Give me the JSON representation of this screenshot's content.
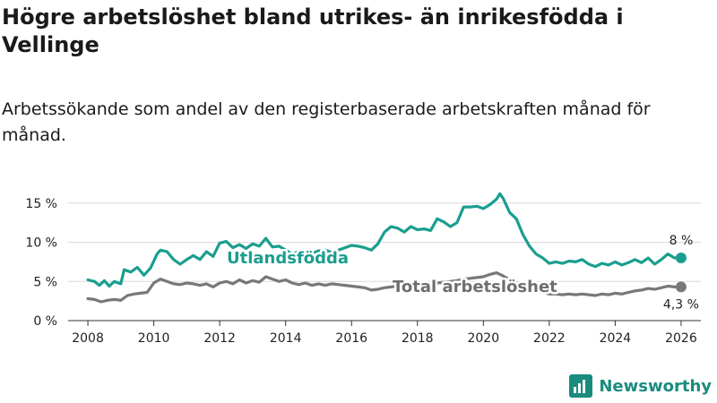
{
  "title": "Högre arbetslöshet bland utrikes- än inrikesfödda i Vellinge",
  "subtitle": "Arbetssökande som andel av den registerbaserade arbetskraften månad för månad.",
  "brand": {
    "name": "Newsworthy",
    "color": "#1a8c7e"
  },
  "chart_data": {
    "type": "line",
    "title": "Högre arbetslöshet bland utrikes- än inrikesfödda i Vellinge",
    "subtitle": "Arbetssökande som andel av den registerbaserade arbetskraften månad för månad.",
    "xlabel": "",
    "ylabel": "",
    "xlim": [
      2007.4,
      2026.6
    ],
    "ylim": [
      0,
      16
    ],
    "y_ticks": [
      0,
      5,
      10,
      15
    ],
    "y_tick_labels": [
      "0 %",
      "5 %",
      "10 %",
      "15 %"
    ],
    "x_ticks": [
      2008,
      2010,
      2012,
      2014,
      2016,
      2018,
      2020,
      2022,
      2024,
      2026
    ],
    "x_tick_labels": [
      "2008",
      "2010",
      "2012",
      "2014",
      "2016",
      "2018",
      "2020",
      "2022",
      "2024",
      "2026"
    ],
    "grid": "horizontal",
    "series": [
      {
        "name": "Utlandsfödda",
        "color": "#1a9e8f",
        "end_label": "8 %",
        "end_value": 8.0,
        "points": [
          [
            2008.0,
            5.2
          ],
          [
            2008.2,
            5.0
          ],
          [
            2008.35,
            4.5
          ],
          [
            2008.5,
            5.1
          ],
          [
            2008.65,
            4.4
          ],
          [
            2008.8,
            5.0
          ],
          [
            2009.0,
            4.7
          ],
          [
            2009.1,
            6.5
          ],
          [
            2009.3,
            6.2
          ],
          [
            2009.5,
            6.8
          ],
          [
            2009.7,
            5.8
          ],
          [
            2009.9,
            6.7
          ],
          [
            2010.1,
            8.5
          ],
          [
            2010.2,
            9.0
          ],
          [
            2010.4,
            8.8
          ],
          [
            2010.6,
            7.8
          ],
          [
            2010.8,
            7.2
          ],
          [
            2011.0,
            7.8
          ],
          [
            2011.2,
            8.3
          ],
          [
            2011.4,
            7.8
          ],
          [
            2011.6,
            8.8
          ],
          [
            2011.8,
            8.2
          ],
          [
            2012.0,
            9.9
          ],
          [
            2012.2,
            10.1
          ],
          [
            2012.4,
            9.3
          ],
          [
            2012.6,
            9.7
          ],
          [
            2012.8,
            9.2
          ],
          [
            2013.0,
            9.8
          ],
          [
            2013.2,
            9.5
          ],
          [
            2013.4,
            10.5
          ],
          [
            2013.6,
            9.4
          ],
          [
            2013.8,
            9.5
          ],
          [
            2014.0,
            9.0
          ],
          [
            2014.2,
            8.5
          ],
          [
            2014.4,
            8.8
          ],
          [
            2014.6,
            8.3
          ],
          [
            2014.8,
            8.6
          ],
          [
            2015.0,
            8.9
          ],
          [
            2015.2,
            9.0
          ],
          [
            2015.4,
            8.7
          ],
          [
            2015.6,
            9.0
          ],
          [
            2015.8,
            9.3
          ],
          [
            2016.0,
            9.6
          ],
          [
            2016.2,
            9.5
          ],
          [
            2016.4,
            9.3
          ],
          [
            2016.6,
            9.0
          ],
          [
            2016.8,
            9.8
          ],
          [
            2017.0,
            11.3
          ],
          [
            2017.2,
            12.0
          ],
          [
            2017.4,
            11.8
          ],
          [
            2017.6,
            11.3
          ],
          [
            2017.8,
            12.0
          ],
          [
            2018.0,
            11.6
          ],
          [
            2018.2,
            11.7
          ],
          [
            2018.4,
            11.5
          ],
          [
            2018.6,
            13.0
          ],
          [
            2018.8,
            12.6
          ],
          [
            2019.0,
            12.0
          ],
          [
            2019.2,
            12.5
          ],
          [
            2019.4,
            14.5
          ],
          [
            2019.6,
            14.5
          ],
          [
            2019.8,
            14.6
          ],
          [
            2020.0,
            14.3
          ],
          [
            2020.2,
            14.8
          ],
          [
            2020.4,
            15.5
          ],
          [
            2020.5,
            16.2
          ],
          [
            2020.6,
            15.6
          ],
          [
            2020.8,
            13.8
          ],
          [
            2021.0,
            13.0
          ],
          [
            2021.2,
            11.0
          ],
          [
            2021.4,
            9.5
          ],
          [
            2021.6,
            8.5
          ],
          [
            2021.8,
            8.0
          ],
          [
            2022.0,
            7.3
          ],
          [
            2022.2,
            7.5
          ],
          [
            2022.4,
            7.3
          ],
          [
            2022.6,
            7.6
          ],
          [
            2022.8,
            7.5
          ],
          [
            2023.0,
            7.8
          ],
          [
            2023.2,
            7.2
          ],
          [
            2023.4,
            6.9
          ],
          [
            2023.6,
            7.3
          ],
          [
            2023.8,
            7.1
          ],
          [
            2024.0,
            7.5
          ],
          [
            2024.2,
            7.1
          ],
          [
            2024.4,
            7.4
          ],
          [
            2024.6,
            7.8
          ],
          [
            2024.8,
            7.4
          ],
          [
            2025.0,
            8.0
          ],
          [
            2025.2,
            7.2
          ],
          [
            2025.4,
            7.8
          ],
          [
            2025.6,
            8.5
          ],
          [
            2025.8,
            8.0
          ],
          [
            2026.0,
            8.0
          ]
        ]
      },
      {
        "name": "Total arbetslöshet",
        "color": "#787878",
        "end_label": "4,3 %",
        "end_value": 4.3,
        "points": [
          [
            2008.0,
            2.8
          ],
          [
            2008.2,
            2.7
          ],
          [
            2008.4,
            2.4
          ],
          [
            2008.6,
            2.6
          ],
          [
            2008.8,
            2.7
          ],
          [
            2009.0,
            2.6
          ],
          [
            2009.2,
            3.2
          ],
          [
            2009.4,
            3.4
          ],
          [
            2009.6,
            3.5
          ],
          [
            2009.8,
            3.6
          ],
          [
            2010.0,
            4.8
          ],
          [
            2010.2,
            5.3
          ],
          [
            2010.4,
            5.0
          ],
          [
            2010.6,
            4.7
          ],
          [
            2010.8,
            4.6
          ],
          [
            2011.0,
            4.8
          ],
          [
            2011.2,
            4.7
          ],
          [
            2011.4,
            4.5
          ],
          [
            2011.6,
            4.7
          ],
          [
            2011.8,
            4.3
          ],
          [
            2012.0,
            4.8
          ],
          [
            2012.2,
            5.0
          ],
          [
            2012.4,
            4.7
          ],
          [
            2012.6,
            5.2
          ],
          [
            2012.8,
            4.8
          ],
          [
            2013.0,
            5.1
          ],
          [
            2013.2,
            4.9
          ],
          [
            2013.4,
            5.6
          ],
          [
            2013.6,
            5.3
          ],
          [
            2013.8,
            5.0
          ],
          [
            2014.0,
            5.2
          ],
          [
            2014.2,
            4.8
          ],
          [
            2014.4,
            4.6
          ],
          [
            2014.6,
            4.8
          ],
          [
            2014.8,
            4.5
          ],
          [
            2015.0,
            4.7
          ],
          [
            2015.2,
            4.5
          ],
          [
            2015.4,
            4.7
          ],
          [
            2015.6,
            4.6
          ],
          [
            2015.8,
            4.5
          ],
          [
            2016.0,
            4.4
          ],
          [
            2016.2,
            4.3
          ],
          [
            2016.4,
            4.2
          ],
          [
            2016.6,
            3.9
          ],
          [
            2016.8,
            4.0
          ],
          [
            2017.0,
            4.2
          ],
          [
            2017.2,
            4.3
          ],
          [
            2017.4,
            4.4
          ],
          [
            2017.6,
            4.5
          ],
          [
            2017.8,
            4.6
          ],
          [
            2018.0,
            4.5
          ],
          [
            2018.2,
            4.5
          ],
          [
            2018.4,
            4.7
          ],
          [
            2018.6,
            4.8
          ],
          [
            2018.8,
            4.9
          ],
          [
            2019.0,
            5.0
          ],
          [
            2019.2,
            5.1
          ],
          [
            2019.4,
            5.3
          ],
          [
            2019.6,
            5.4
          ],
          [
            2019.8,
            5.5
          ],
          [
            2020.0,
            5.6
          ],
          [
            2020.2,
            5.9
          ],
          [
            2020.4,
            6.1
          ],
          [
            2020.6,
            5.7
          ],
          [
            2020.8,
            5.2
          ],
          [
            2021.0,
            4.8
          ],
          [
            2021.2,
            4.4
          ],
          [
            2021.4,
            4.0
          ],
          [
            2021.6,
            3.8
          ],
          [
            2021.8,
            3.6
          ],
          [
            2022.0,
            3.4
          ],
          [
            2022.2,
            3.4
          ],
          [
            2022.4,
            3.3
          ],
          [
            2022.6,
            3.4
          ],
          [
            2022.8,
            3.3
          ],
          [
            2023.0,
            3.4
          ],
          [
            2023.2,
            3.3
          ],
          [
            2023.4,
            3.2
          ],
          [
            2023.6,
            3.4
          ],
          [
            2023.8,
            3.3
          ],
          [
            2024.0,
            3.5
          ],
          [
            2024.2,
            3.4
          ],
          [
            2024.4,
            3.6
          ],
          [
            2024.6,
            3.8
          ],
          [
            2024.8,
            3.9
          ],
          [
            2025.0,
            4.1
          ],
          [
            2025.2,
            4.0
          ],
          [
            2025.4,
            4.2
          ],
          [
            2025.6,
            4.4
          ],
          [
            2025.8,
            4.3
          ],
          [
            2026.0,
            4.3
          ]
        ]
      }
    ]
  }
}
